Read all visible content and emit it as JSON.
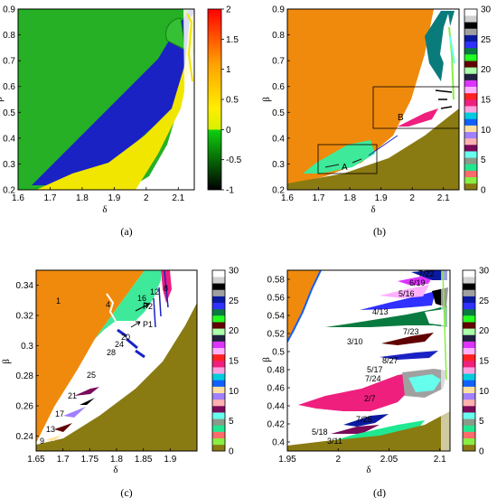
{
  "chart_data": [
    {
      "type": "heatmap",
      "panel": "a",
      "caption": "(a)",
      "xlabel": "δ",
      "ylabel": "β",
      "xlim": [
        1.6,
        2.15
      ],
      "ylim": [
        0.2,
        0.9
      ],
      "xticks": [
        "1.6",
        "1.7",
        "1.8",
        "1.9",
        "2",
        "2.1"
      ],
      "yticks": [
        "0.2",
        "0.3",
        "0.4",
        "0.5",
        "0.6",
        "0.7",
        "0.8",
        "0.9"
      ],
      "colorbar": {
        "range": [
          -1,
          2
        ],
        "ticks": [
          "-1",
          "-0.5",
          "0",
          "0.5",
          "1",
          "1.5",
          "2"
        ],
        "colors": [
          "#000000",
          "#0b9a0b",
          "#00d000",
          "#ffff00",
          "#ffaa00",
          "#ff0000"
        ]
      },
      "colors": {
        "green": "#22b022",
        "blue": "#1520c8",
        "yellow": "#f0e400",
        "white": "#ffffff"
      }
    },
    {
      "type": "heatmap",
      "panel": "b",
      "caption": "(b)",
      "xlabel": "δ",
      "ylabel": "β",
      "xlim": [
        1.6,
        2.15
      ],
      "ylim": [
        0.2,
        0.9
      ],
      "xticks": [
        "1.6",
        "1.7",
        "1.8",
        "1.9",
        "2",
        "2.1"
      ],
      "yticks": [
        "0.2",
        "0.3",
        "0.4",
        "0.5",
        "0.6",
        "0.7",
        "0.8",
        "0.9"
      ],
      "annotations": [
        "A",
        "B"
      ],
      "colorbar": {
        "range": [
          0,
          30
        ],
        "ticks": [
          "0",
          "5",
          "10",
          "15",
          "20",
          "25",
          "30"
        ]
      },
      "colors": {
        "orange": "#f08a0c",
        "olive": "#8a7a12",
        "mint": "#3de89a",
        "pink": "#ef1f7e",
        "teal": "#0a7b7b"
      }
    },
    {
      "type": "heatmap",
      "panel": "c",
      "caption": "(c)",
      "xlabel": "δ",
      "ylabel": "β",
      "xlim": [
        1.65,
        1.95
      ],
      "ylim": [
        0.23,
        0.35
      ],
      "xticks": [
        "1.65",
        "1.7",
        "1.75",
        "1.8",
        "1.85",
        "1.9"
      ],
      "yticks": [
        "0.24",
        "0.26",
        "0.28",
        "0.3",
        "0.32",
        "0.34"
      ],
      "annotations": [
        "1",
        "4",
        "16",
        "12",
        "8",
        "P2",
        "P1",
        "20",
        "24",
        "28",
        "25",
        "21",
        "17",
        "13",
        "9"
      ],
      "colorbar": {
        "range": [
          0,
          30
        ],
        "ticks": [
          "0",
          "5",
          "10",
          "15",
          "20",
          "25",
          "30"
        ]
      }
    },
    {
      "type": "heatmap",
      "panel": "d",
      "caption": "(d)",
      "xlabel": "δ",
      "ylabel": "β",
      "xlim": [
        1.95,
        2.11
      ],
      "ylim": [
        0.39,
        0.59
      ],
      "xticks": [
        "1.95",
        "2",
        "2.05",
        "2.1"
      ],
      "yticks": [
        "0.4",
        "0.42",
        "0.44",
        "0.46",
        "0.48",
        "0.5",
        "0.52",
        "0.54",
        "0.56",
        "0.58"
      ],
      "annotations": [
        "7/22",
        "6/19",
        "5/16",
        "4/13",
        "7/23",
        "3/10",
        "8/27",
        "5/17",
        "7/24",
        "2/7",
        "7/25",
        "5/18",
        "3/11"
      ],
      "colorbar": {
        "range": [
          0,
          30
        ],
        "ticks": [
          "0",
          "5",
          "10",
          "15",
          "20",
          "25",
          "30"
        ]
      }
    }
  ],
  "period_palette": [
    "#8a7a12",
    "#88ee44",
    "#ff6a6a",
    "#20e890",
    "#8a9a8a",
    "#66ffee",
    "#7a0a5a",
    "#ffb0b0",
    "#a080ff",
    "#ffe0a0",
    "#1060ff",
    "#00ccdd",
    "#ffa0e0",
    "#ef1f7e",
    "#ff2020",
    "#ffb0ff",
    "#dd33ff",
    "#202040",
    "#aaffaa",
    "#600000",
    "#22ff22",
    "#0a7b40",
    "#3030ff",
    "#0a1aa0",
    "#a0a0a0",
    "#000000",
    "#d0d0d0",
    "#ffffff"
  ]
}
